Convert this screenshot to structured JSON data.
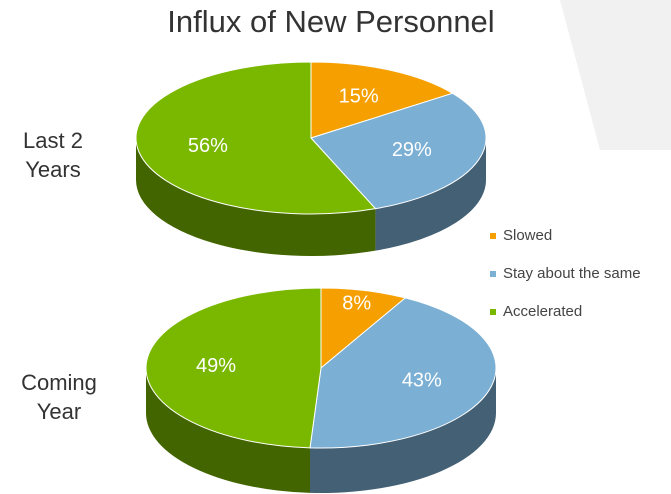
{
  "title": "Influx of New Personnel",
  "chart_data": [
    {
      "type": "pie",
      "title": "Last 2 Years",
      "categories": [
        "Slowed",
        "Stay about the same",
        "Accelerated"
      ],
      "values": [
        15,
        29,
        56
      ],
      "value_labels": [
        "15%",
        "29%",
        "56%"
      ],
      "colors": [
        "#f5a000",
        "#7bafd4",
        "#7ab800"
      ]
    },
    {
      "type": "pie",
      "title": "Coming Year",
      "categories": [
        "Slowed",
        "Stay about the same",
        "Accelerated"
      ],
      "values": [
        8,
        43,
        49
      ],
      "value_labels": [
        "8%",
        "43%",
        "49%"
      ],
      "colors": [
        "#f5a000",
        "#7bafd4",
        "#7ab800"
      ]
    }
  ]
}
